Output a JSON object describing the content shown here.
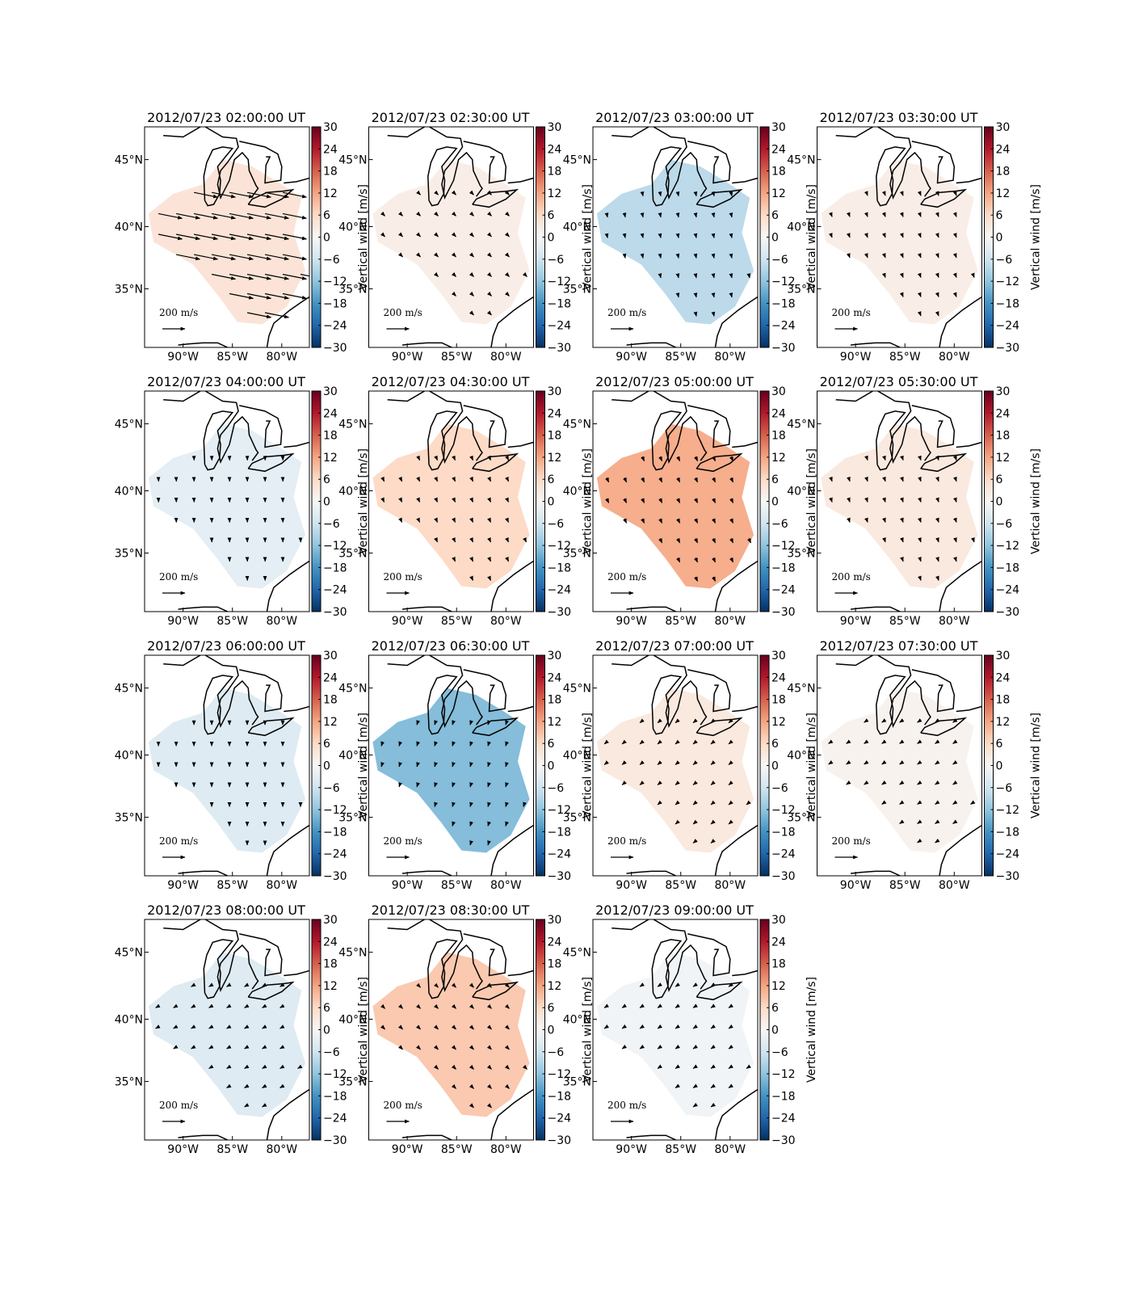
{
  "chart_data": {
    "type": "map",
    "xlim": [
      -93.9,
      -77.2
    ],
    "ylim": [
      30.0,
      47.3
    ],
    "xticks": [
      {
        "value": -90,
        "label": "90°W"
      },
      {
        "value": -85,
        "label": "85°W"
      },
      {
        "value": -80,
        "label": "80°W"
      }
    ],
    "yticks": [
      {
        "value": 35,
        "label": "35°N"
      },
      {
        "value": 40,
        "label": "40°N"
      },
      {
        "value": 45,
        "label": "45°N"
      }
    ],
    "colorbar": {
      "label": "Vertical wind [m/s]",
      "clim": [
        -30,
        30
      ],
      "ticks": [
        {
          "value": -30,
          "label": "−30"
        },
        {
          "value": -24,
          "label": "−24"
        },
        {
          "value": -18,
          "label": "−18"
        },
        {
          "value": -12,
          "label": "−12"
        },
        {
          "value": -6,
          "label": "−6"
        },
        0,
        6,
        12,
        18,
        24,
        30
      ]
    },
    "quiver_key": {
      "value": 200,
      "label": "200 m/s"
    },
    "panels": [
      {
        "title": "2012/07/23 02:00:00 UT",
        "vertical_wind": 4,
        "wind": [
          600,
          -120
        ]
      },
      {
        "title": "2012/07/23 02:30:00 UT",
        "vertical_wind": 2,
        "wind": [
          60,
          -60
        ]
      },
      {
        "title": "2012/07/23 03:00:00 UT",
        "vertical_wind": -8,
        "wind": [
          20,
          -90
        ]
      },
      {
        "title": "2012/07/23 03:30:00 UT",
        "vertical_wind": 2,
        "wind": [
          30,
          -80
        ]
      },
      {
        "title": "2012/07/23 04:00:00 UT",
        "vertical_wind": -3,
        "wind": [
          5,
          -90
        ]
      },
      {
        "title": "2012/07/23 04:30:00 UT",
        "vertical_wind": 6,
        "wind": [
          40,
          -90
        ]
      },
      {
        "title": "2012/07/23 05:00:00 UT",
        "vertical_wind": 11,
        "wind": [
          50,
          -110
        ]
      },
      {
        "title": "2012/07/23 05:30:00 UT",
        "vertical_wind": 3,
        "wind": [
          30,
          -90
        ]
      },
      {
        "title": "2012/07/23 06:00:00 UT",
        "vertical_wind": -4,
        "wind": [
          0,
          -100
        ]
      },
      {
        "title": "2012/07/23 06:30:00 UT",
        "vertical_wind": -13,
        "wind": [
          -30,
          -100
        ]
      },
      {
        "title": "2012/07/23 07:00:00 UT",
        "vertical_wind": 3,
        "wind": [
          -60,
          -50
        ]
      },
      {
        "title": "2012/07/23 07:30:00 UT",
        "vertical_wind": 1,
        "wind": [
          -60,
          -40
        ]
      },
      {
        "title": "2012/07/23 08:00:00 UT",
        "vertical_wind": -4,
        "wind": [
          -70,
          -40
        ]
      },
      {
        "title": "2012/07/23 08:30:00 UT",
        "vertical_wind": 8,
        "wind": [
          60,
          -60
        ]
      },
      {
        "title": "2012/07/23 09:00:00 UT",
        "vertical_wind": -1,
        "wind": [
          -60,
          -40
        ]
      }
    ]
  }
}
